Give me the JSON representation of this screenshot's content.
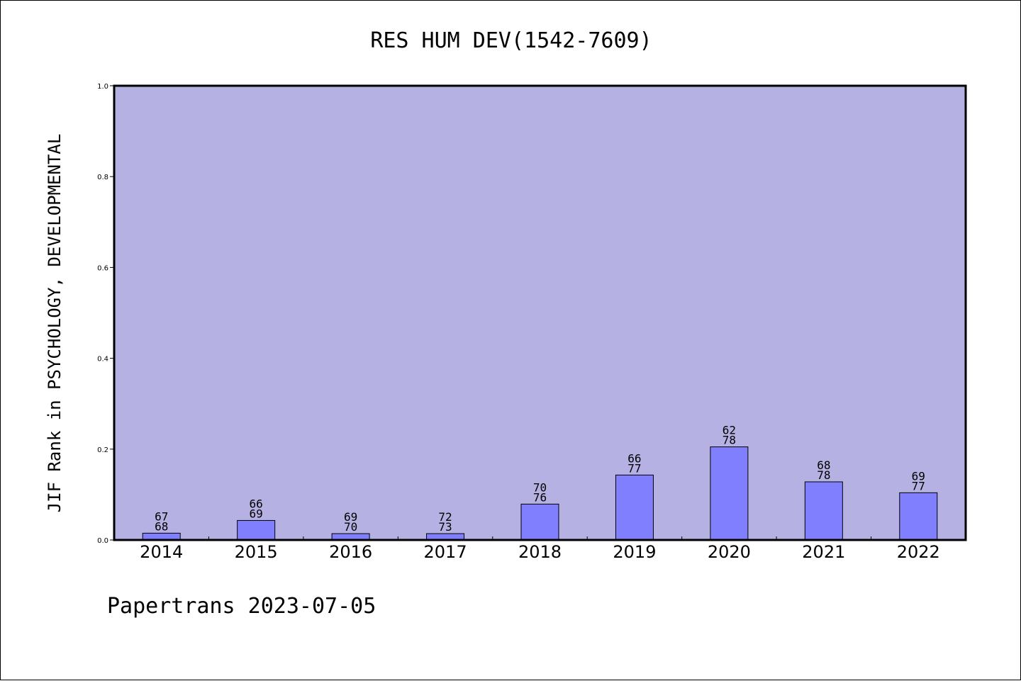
{
  "chart_data": {
    "type": "bar",
    "title": "RES HUM DEV(1542-7609)",
    "ylabel": "JIF Rank in PSYCHOLOGY, DEVELOPMENTAL",
    "xlabel": "",
    "ylim": [
      0,
      1.0
    ],
    "yticks": [
      "0.0",
      "0.2",
      "0.4",
      "0.6",
      "0.8",
      "1.0"
    ],
    "categories": [
      "2014",
      "2015",
      "2016",
      "2017",
      "2018",
      "2019",
      "2020",
      "2021",
      "2022"
    ],
    "values": [
      0.015,
      0.043,
      0.014,
      0.014,
      0.079,
      0.143,
      0.205,
      0.128,
      0.104
    ],
    "rank_labels": [
      [
        "67",
        "68"
      ],
      [
        "66",
        "69"
      ],
      [
        "69",
        "70"
      ],
      [
        "72",
        "73"
      ],
      [
        "70",
        "76"
      ],
      [
        "66",
        "77"
      ],
      [
        "62",
        "78"
      ],
      [
        "68",
        "78"
      ],
      [
        "69",
        "77"
      ]
    ],
    "grid": false,
    "colors": {
      "plot_background": "#b6b1e3",
      "bar_fill": "#8080ff",
      "bar_stroke": "#000000"
    }
  },
  "footer": {
    "watermark": "Papertrans 2023-07-05"
  }
}
